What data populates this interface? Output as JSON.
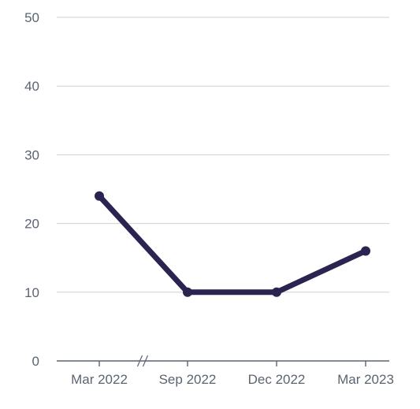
{
  "chart_data": {
    "type": "line",
    "title": "",
    "xlabel": "",
    "ylabel": "",
    "categories": [
      "Mar 2022",
      "Sep 2022",
      "Dec 2022",
      "Mar 2023"
    ],
    "axis_break_between": [
      "Mar 2022",
      "Sep 2022"
    ],
    "ylim": [
      0,
      50
    ],
    "yticks": [
      0,
      10,
      20,
      30,
      40,
      50
    ],
    "grid": true,
    "series": [
      {
        "values": [
          24,
          10,
          10,
          16
        ],
        "color": "#2b2350"
      }
    ]
  }
}
